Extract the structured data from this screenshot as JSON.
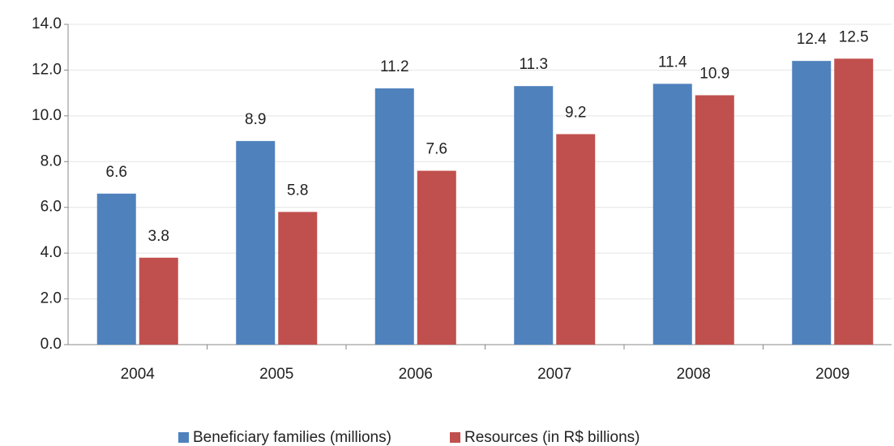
{
  "chart_data": {
    "type": "bar",
    "categories": [
      "2004",
      "2005",
      "2006",
      "2007",
      "2008",
      "2009"
    ],
    "series": [
      {
        "name": "Beneficiary families (millions)",
        "color": "#4f81bd",
        "values": [
          6.6,
          8.9,
          11.2,
          11.3,
          11.4,
          12.4
        ]
      },
      {
        "name": "Resources (in R$ billions)",
        "color": "#c0504d",
        "values": [
          3.8,
          5.8,
          7.6,
          9.2,
          10.9,
          12.5
        ]
      }
    ],
    "ylim": [
      0,
      14
    ],
    "yticks": [
      {
        "value": 0,
        "label": "0.0"
      },
      {
        "value": 2,
        "label": "2.0"
      },
      {
        "value": 4,
        "label": "4.0"
      },
      {
        "value": 6,
        "label": "6.0"
      },
      {
        "value": 8,
        "label": "8.0"
      },
      {
        "value": 10,
        "label": "10.0"
      },
      {
        "value": 12,
        "label": "12.0"
      },
      {
        "value": 14,
        "label": "14.0"
      }
    ],
    "grid": true,
    "legend": "bottom"
  }
}
